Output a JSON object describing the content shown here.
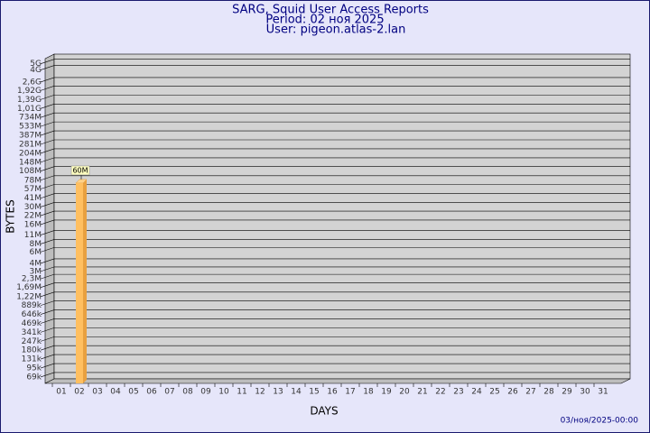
{
  "chart_data": {
    "type": "bar",
    "title": "SARG, Squid User Access Reports",
    "subtitle": [
      "Period: 02 ноя 2025",
      "User: pigeon.atlas-2.lan"
    ],
    "x_label": "DAYS",
    "y_label": "BYTES",
    "annotation": "03/ноя/2025-00:00",
    "log_scale": true,
    "grid": true,
    "color": "#ffbf60",
    "categories": [
      "01",
      "02",
      "03",
      "04",
      "05",
      "06",
      "07",
      "08",
      "09",
      "10",
      "11",
      "12",
      "13",
      "14",
      "15",
      "16",
      "17",
      "18",
      "19",
      "20",
      "21",
      "22",
      "23",
      "24",
      "25",
      "26",
      "27",
      "28",
      "29",
      "30",
      "31"
    ],
    "values": [
      null,
      60000000,
      null,
      null,
      null,
      null,
      null,
      null,
      null,
      null,
      null,
      null,
      null,
      null,
      null,
      null,
      null,
      null,
      null,
      null,
      null,
      null,
      null,
      null,
      null,
      null,
      null,
      null,
      null,
      null,
      null
    ],
    "value_labels": [
      null,
      "60M",
      null,
      null,
      null,
      null,
      null,
      null,
      null,
      null,
      null,
      null,
      null,
      null,
      null,
      null,
      null,
      null,
      null,
      null,
      null,
      null,
      null,
      null,
      null,
      null,
      null,
      null,
      null,
      null,
      null
    ],
    "ylim": [
      55000,
      6000000000
    ],
    "yticks": [
      {
        "value": 69000,
        "label": "69k"
      },
      {
        "value": 95000,
        "label": "95k"
      },
      {
        "value": 131000,
        "label": "131k"
      },
      {
        "value": 180000,
        "label": "180k"
      },
      {
        "value": 247000,
        "label": "247k"
      },
      {
        "value": 341000,
        "label": "341k"
      },
      {
        "value": 469000,
        "label": "469k"
      },
      {
        "value": 646000,
        "label": "646k"
      },
      {
        "value": 889000,
        "label": "889k"
      },
      {
        "value": 1220000,
        "label": "1,22M"
      },
      {
        "value": 1690000,
        "label": "1,69M"
      },
      {
        "value": 2300000,
        "label": "2,3M"
      },
      {
        "value": 3000000,
        "label": "3M"
      },
      {
        "value": 4000000,
        "label": "4M"
      },
      {
        "value": 6000000,
        "label": "6M"
      },
      {
        "value": 8000000,
        "label": "8M"
      },
      {
        "value": 11000000,
        "label": "11M"
      },
      {
        "value": 16000000,
        "label": "16M"
      },
      {
        "value": 22000000,
        "label": "22M"
      },
      {
        "value": 30000000,
        "label": "30M"
      },
      {
        "value": 41000000,
        "label": "41M"
      },
      {
        "value": 57000000,
        "label": "57M"
      },
      {
        "value": 78000000,
        "label": "78M"
      },
      {
        "value": 108000000,
        "label": "108M"
      },
      {
        "value": 148000000,
        "label": "148M"
      },
      {
        "value": 204000000,
        "label": "204M"
      },
      {
        "value": 281000000,
        "label": "281M"
      },
      {
        "value": 387000000,
        "label": "387M"
      },
      {
        "value": 533000000,
        "label": "533M"
      },
      {
        "value": 734000000,
        "label": "734M"
      },
      {
        "value": 1010000000,
        "label": "1,01G"
      },
      {
        "value": 1390000000,
        "label": "1,39G"
      },
      {
        "value": 1920000000,
        "label": "1,92G"
      },
      {
        "value": 2600000000,
        "label": "2,6G"
      },
      {
        "value": 4000000000,
        "label": "4G"
      },
      {
        "value": 5000000000,
        "label": "5G"
      }
    ]
  }
}
